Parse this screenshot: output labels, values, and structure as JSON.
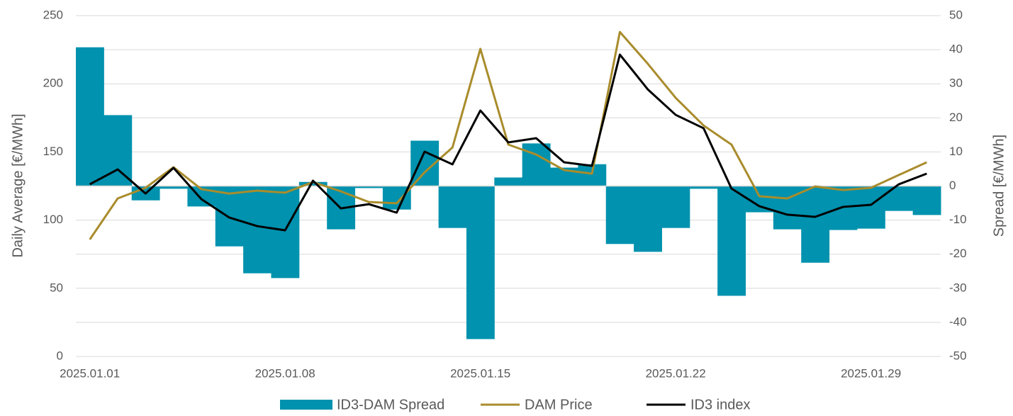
{
  "chart_data": {
    "type": "bar-line",
    "categories": [
      "2025.01.01",
      null,
      null,
      null,
      null,
      null,
      null,
      "2025.01.08",
      null,
      null,
      null,
      null,
      null,
      null,
      "2025.01.15",
      null,
      null,
      null,
      null,
      null,
      null,
      "2025.01.22",
      null,
      null,
      null,
      null,
      null,
      null,
      "2025.01.29",
      null,
      null
    ],
    "series": [
      {
        "name": "ID3-DAM Spread",
        "type": "bar",
        "axis": "y2",
        "color": "#0092ae",
        "values": [
          40.7,
          20.8,
          -4.2,
          -0.8,
          -6.0,
          -17.7,
          -25.6,
          -27.0,
          1.2,
          -12.7,
          -0.6,
          -6.9,
          13.3,
          -12.3,
          -44.9,
          2.5,
          12.5,
          5.4,
          6.4,
          -17.0,
          -19.3,
          -12.3,
          -0.8,
          -32.2,
          -7.7,
          -12.7,
          -22.5,
          -12.9,
          -12.5,
          -7.3,
          -8.5
        ]
      },
      {
        "name": "DAM Price",
        "type": "line",
        "axis": "y",
        "color": "#a98c2c",
        "values": [
          85.8,
          115.9,
          123.7,
          138.8,
          122.7,
          119.5,
          121.6,
          120.1,
          127.9,
          121.1,
          113.3,
          112.3,
          135.1,
          153.3,
          225.6,
          155.4,
          148.1,
          136.7,
          134.1,
          238.0,
          214.7,
          189.7,
          169.4,
          155.4,
          117.5,
          115.9,
          124.7,
          122.1,
          123.7,
          133.1,
          142.4
        ]
      },
      {
        "name": "ID3 index",
        "type": "line",
        "axis": "y",
        "color": "#000000",
        "values": [
          126.3,
          137.2,
          119.5,
          138.3,
          115.4,
          101.9,
          95.6,
          92.5,
          128.9,
          108.6,
          111.7,
          105.5,
          150.2,
          140.9,
          180.4,
          157.0,
          160.1,
          142.4,
          139.8,
          221.4,
          195.9,
          177.2,
          167.4,
          123.2,
          110.2,
          104.0,
          102.4,
          109.7,
          111.2,
          126.3,
          134.1
        ]
      }
    ],
    "y_label": "Daily Average [€/MWh]",
    "y2_label": "Spread [€/MWh]",
    "ylim": [
      0,
      250
    ],
    "yticks": [
      0,
      50,
      100,
      150,
      200,
      250
    ],
    "y2lim": [
      -50,
      50
    ],
    "y2ticks": [
      -50,
      -40,
      -30,
      -20,
      -10,
      0,
      10,
      20,
      30,
      40,
      50
    ],
    "grid": true,
    "legend": "bottom"
  }
}
